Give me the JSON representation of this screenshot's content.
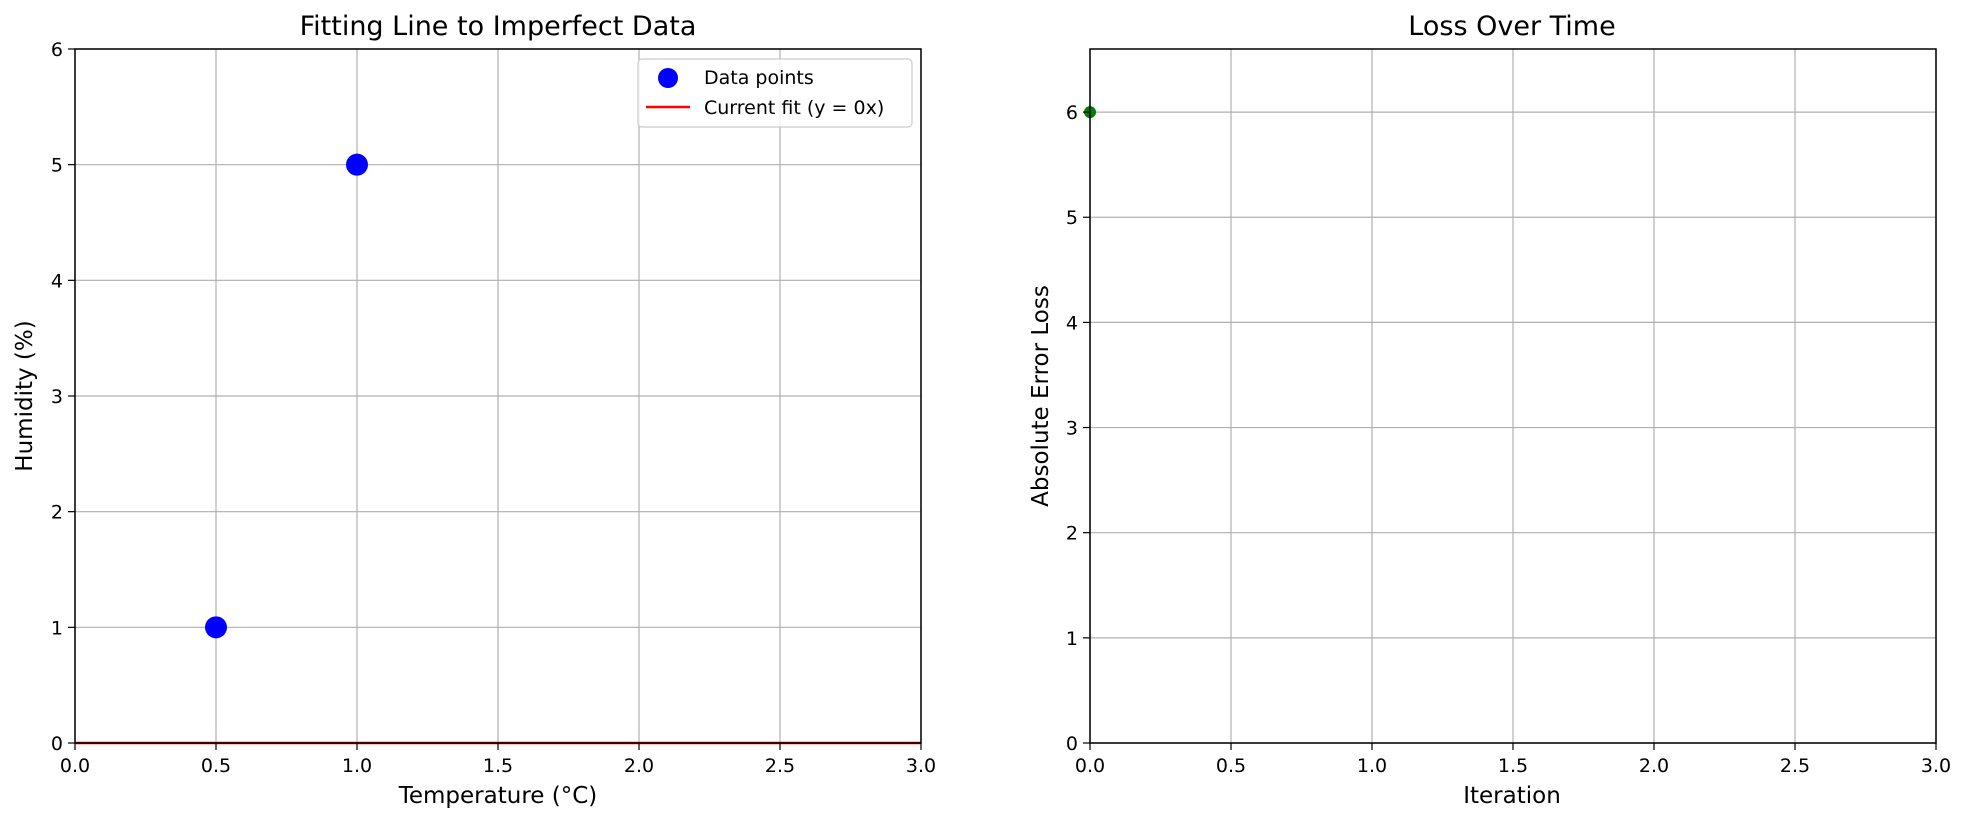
{
  "chart_data": [
    {
      "type": "scatter",
      "title": "Fitting Line to Imperfect Data",
      "xlabel": "Temperature (°C)",
      "ylabel": "Humidity (%)",
      "xlim": [
        0,
        3
      ],
      "ylim": [
        0,
        6
      ],
      "x_ticks": [
        "0.0",
        "0.5",
        "1.0",
        "1.5",
        "2.0",
        "2.5",
        "3.0"
      ],
      "y_ticks": [
        "0",
        "1",
        "2",
        "3",
        "4",
        "5",
        "6"
      ],
      "grid": true,
      "legend_position": "top-right",
      "series": [
        {
          "name": "Data points",
          "kind": "scatter",
          "color": "#0000ff",
          "x": [
            0.5,
            1.0
          ],
          "y": [
            1,
            5
          ]
        },
        {
          "name": "Current fit (y = 0x)",
          "kind": "line",
          "color": "#ff0000",
          "x": [
            0,
            3
          ],
          "y": [
            0,
            0
          ]
        }
      ]
    },
    {
      "type": "line",
      "title": "Loss Over Time",
      "xlabel": "Iteration",
      "ylabel": "Absolute Error Loss",
      "xlim": [
        0,
        3
      ],
      "ylim": [
        0,
        6.6
      ],
      "x_ticks": [
        "0.0",
        "0.5",
        "1.0",
        "1.5",
        "2.0",
        "2.5",
        "3.0"
      ],
      "y_ticks": [
        "0",
        "1",
        "2",
        "3",
        "4",
        "5",
        "6"
      ],
      "grid": true,
      "series": [
        {
          "kind": "line-marker",
          "color": "#008000",
          "x": [
            0
          ],
          "y": [
            6
          ]
        }
      ]
    }
  ]
}
